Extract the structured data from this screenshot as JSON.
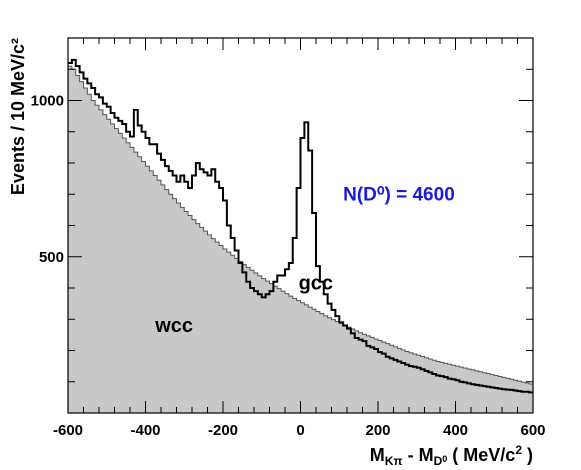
{
  "chart_data": {
    "type": "area",
    "xlim": [
      -600,
      600
    ],
    "ylim": [
      0,
      1200
    ],
    "x_ticks": [
      -600,
      -400,
      -200,
      0,
      200,
      400,
      600
    ],
    "x_tick_labels": [
      "-600",
      "-400",
      "-200",
      "0",
      "200",
      "400",
      "600"
    ],
    "y_ticks": [
      500,
      1000
    ],
    "y_tick_labels": [
      "500",
      "1000"
    ],
    "ylabel": "Events / 10 MeV/c²",
    "xlabel": {
      "parts": [
        {
          "t": "M",
          "s": "n"
        },
        {
          "t": "Kπ",
          "s": "sub"
        },
        {
          "t": " - M",
          "s": "n"
        },
        {
          "t": "D",
          "s": "sub"
        },
        {
          "t": "0",
          "s": "subsup"
        },
        {
          "t": " ( MeV/c",
          "s": "n"
        },
        {
          "t": "2",
          "s": "sup"
        },
        {
          "t": " )",
          "s": "n"
        }
      ]
    },
    "x": [
      -600,
      -590,
      -580,
      -570,
      -560,
      -550,
      -540,
      -530,
      -520,
      -510,
      -500,
      -490,
      -480,
      -470,
      -460,
      -450,
      -440,
      -430,
      -420,
      -410,
      -400,
      -390,
      -380,
      -370,
      -360,
      -350,
      -340,
      -330,
      -320,
      -310,
      -300,
      -290,
      -280,
      -270,
      -260,
      -250,
      -240,
      -230,
      -220,
      -210,
      -200,
      -190,
      -180,
      -170,
      -160,
      -150,
      -140,
      -130,
      -120,
      -110,
      -100,
      -90,
      -80,
      -70,
      -60,
      -50,
      -40,
      -30,
      -20,
      -10,
      0,
      10,
      20,
      30,
      40,
      50,
      60,
      70,
      80,
      90,
      100,
      110,
      120,
      130,
      140,
      150,
      160,
      170,
      180,
      190,
      200,
      210,
      220,
      230,
      240,
      250,
      260,
      270,
      280,
      290,
      300,
      310,
      320,
      330,
      340,
      350,
      360,
      370,
      380,
      390,
      400,
      410,
      420,
      430,
      440,
      450,
      460,
      470,
      480,
      490,
      500,
      510,
      520,
      530,
      540,
      550,
      560,
      570,
      580,
      590
    ],
    "series": [
      {
        "name": "gcc",
        "style": "line",
        "color": "#000000",
        "values": [
          1120,
          1130,
          1110,
          1090,
          1070,
          1055,
          1040,
          1020,
          1010,
          990,
          980,
          960,
          945,
          935,
          925,
          900,
          885,
          970,
          920,
          900,
          880,
          860,
          860,
          830,
          810,
          790,
          775,
          760,
          740,
          760,
          740,
          720,
          760,
          800,
          780,
          770,
          760,
          780,
          740,
          720,
          680,
          600,
          560,
          520,
          480,
          450,
          420,
          400,
          390,
          380,
          370,
          380,
          390,
          420,
          440,
          440,
          460,
          480,
          560,
          720,
          880,
          930,
          840,
          640,
          470,
          420,
          380,
          350,
          330,
          310,
          290,
          280,
          270,
          255,
          240,
          235,
          230,
          215,
          210,
          205,
          195,
          190,
          180,
          175,
          170,
          165,
          160,
          155,
          150,
          148,
          145,
          140,
          135,
          130,
          125,
          120,
          118,
          115,
          110,
          108,
          105,
          100,
          98,
          95,
          92,
          90,
          88,
          86,
          84,
          82,
          80,
          78,
          76,
          75,
          74,
          72,
          70,
          68,
          68,
          66
        ]
      },
      {
        "name": "wcc",
        "style": "filled",
        "color": "#c8c8c8",
        "values": [
          1110,
          1100,
          1080,
          1060,
          1040,
          1020,
          1000,
          985,
          970,
          955,
          940,
          925,
          910,
          895,
          880,
          865,
          850,
          835,
          820,
          805,
          790,
          775,
          760,
          745,
          730,
          715,
          700,
          686,
          672,
          658,
          645,
          632,
          619,
          606,
          594,
          582,
          570,
          558,
          547,
          536,
          525,
          515,
          505,
          495,
          485,
          475,
          466,
          457,
          448,
          439,
          430,
          422,
          414,
          406,
          398,
          390,
          382,
          374,
          367,
          360,
          353,
          346,
          339,
          332,
          325,
          318,
          311,
          305,
          299,
          293,
          287,
          281,
          275,
          269,
          263,
          257,
          252,
          247,
          242,
          237,
          232,
          227,
          222,
          217,
          212,
          207,
          202,
          197,
          193,
          189,
          185,
          181,
          177,
          173,
          169,
          165,
          162,
          159,
          156,
          153,
          150,
          147,
          144,
          141,
          138,
          135,
          132,
          129,
          126,
          123,
          120,
          117,
          114,
          111,
          108,
          105,
          102,
          99,
          96,
          93
        ]
      }
    ],
    "annotations": [
      {
        "text": "gcc",
        "x": -5,
        "y": 395,
        "color": "#000000",
        "size": 20
      },
      {
        "text": "wcc",
        "x": -375,
        "y": 260,
        "color": "#000000",
        "size": 20
      },
      {
        "text": "N(D⁰) = 4600",
        "x": 110,
        "y": 680,
        "color": "#1a1adf",
        "size": 19
      }
    ]
  }
}
